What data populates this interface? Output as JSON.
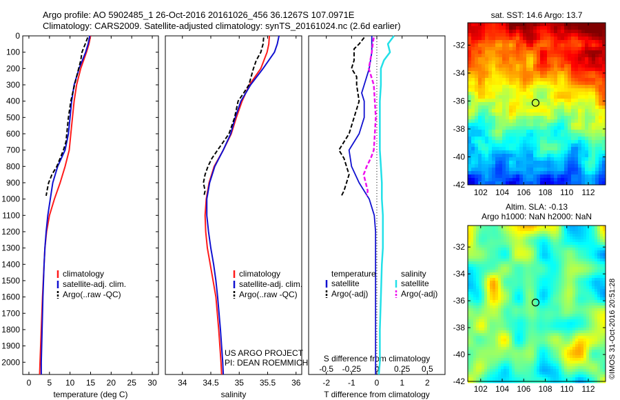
{
  "header": {
    "line1": "Argo profile: AO 5902485_1 26-Oct-2016 20161026_456 36.1267S 107.0971E",
    "line2": "Climatology: CARS2009. Satellite-adjusted climatology: synTS_20161024.nc (2.6d earlier)"
  },
  "colors": {
    "climatology": "#ff1a1a",
    "satellite": "#1010d0",
    "argo": "#000000",
    "sal_satellite": "#22e0e8",
    "sal_argo": "#ee10ee"
  },
  "chart_data": [
    {
      "type": "line",
      "panel": "temperature",
      "xlabel": "temperature (deg C)",
      "ylabel": "",
      "xlim": [
        -1.5,
        31.5
      ],
      "ylim": [
        2075,
        0
      ],
      "xticks": [
        0,
        5,
        10,
        15,
        20,
        25,
        30
      ],
      "yticks": [
        0,
        100,
        200,
        300,
        400,
        500,
        600,
        700,
        800,
        900,
        1000,
        1100,
        1200,
        1300,
        1400,
        1500,
        1600,
        1700,
        1800,
        1900,
        2000
      ],
      "legend": [
        "climatology",
        "satellite-adj. clim.",
        "Argo(..raw -QC)"
      ],
      "series": [
        {
          "name": "climatology",
          "depth": [
            0,
            50,
            100,
            200,
            300,
            400,
            500,
            600,
            700,
            800,
            900,
            1000,
            1100,
            1200,
            1300,
            1400,
            1600,
            1800,
            2000,
            2075
          ],
          "values": [
            15,
            14.6,
            14,
            12.6,
            11.6,
            11,
            10.6,
            10.2,
            9.8,
            8.8,
            7.6,
            6.2,
            5,
            4.3,
            3.9,
            3.7,
            3.3,
            3,
            2.7,
            2.6
          ]
        },
        {
          "name": "satellite-adj. clim.",
          "depth": [
            0,
            50,
            100,
            200,
            300,
            400,
            500,
            600,
            700,
            800,
            900,
            1000,
            1100,
            1200,
            1300,
            1400,
            1600,
            1800,
            2000,
            2075
          ],
          "values": [
            14.8,
            14.4,
            13.8,
            12.2,
            11,
            10.4,
            10,
            9.6,
            8.8,
            7,
            5.8,
            5.2,
            4.6,
            4.2,
            3.9,
            3.7,
            3.4,
            3.2,
            3,
            3
          ]
        },
        {
          "name": "Argo(..raw -QC)",
          "depth": [
            10,
            50,
            100,
            150,
            200,
            300,
            400,
            500,
            600,
            650,
            700,
            750,
            800,
            850,
            900,
            950,
            980
          ],
          "values": [
            14.3,
            13.7,
            12.9,
            12.6,
            12.1,
            11.1,
            10.2,
            9.6,
            9.2,
            9.0,
            8.4,
            7.6,
            6.8,
            5.6,
            4.8,
            4.4,
            4.2
          ]
        }
      ]
    },
    {
      "type": "line",
      "panel": "salinity",
      "xlabel": "salinity",
      "ylabel": "",
      "xlim": [
        33.7,
        36.1
      ],
      "ylim": [
        2075,
        0
      ],
      "xticks": [
        34,
        34.5,
        35,
        35.5,
        36
      ],
      "xtick_labels": [
        "34",
        "34.5",
        "35",
        "35.5",
        "36"
      ],
      "legend": [
        "climatology",
        "satellite-adj. clim.",
        "Argo(..raw -QC)"
      ],
      "annotation": [
        "US ARGO PROJECT",
        "PI: DEAN ROEMMICH"
      ],
      "series": [
        {
          "name": "climatology",
          "depth": [
            0,
            50,
            100,
            200,
            300,
            400,
            500,
            600,
            700,
            800,
            900,
            1000,
            1100,
            1200,
            1300,
            1400,
            1500,
            1600,
            1800,
            2000,
            2075
          ],
          "values": [
            35.53,
            35.52,
            35.49,
            35.38,
            35.18,
            35.05,
            34.95,
            34.86,
            34.72,
            34.56,
            34.47,
            34.42,
            34.4,
            34.41,
            34.44,
            34.49,
            34.54,
            34.59,
            34.64,
            34.68,
            34.69
          ]
        },
        {
          "name": "satellite-adj. clim.",
          "depth": [
            0,
            50,
            100,
            200,
            300,
            400,
            500,
            600,
            700,
            800,
            900,
            1000,
            1100,
            1200,
            1300,
            1400,
            1500,
            1600,
            1800,
            2000,
            2075
          ],
          "values": [
            35.7,
            35.67,
            35.62,
            35.42,
            35.2,
            35.03,
            34.93,
            34.85,
            34.72,
            34.57,
            34.48,
            34.43,
            34.43,
            34.46,
            34.5,
            34.55,
            34.59,
            34.62,
            34.67,
            34.71,
            34.72
          ]
        },
        {
          "name": "Argo(..raw -QC)",
          "depth": [
            10,
            50,
            100,
            150,
            200,
            300,
            350,
            400,
            500,
            600,
            700,
            750,
            800,
            850,
            900,
            950,
            980
          ],
          "values": [
            35.43,
            35.42,
            35.38,
            35.3,
            35.25,
            35.17,
            35.08,
            34.98,
            34.92,
            34.82,
            34.62,
            34.52,
            34.45,
            34.4,
            34.37,
            34.4,
            34.38
          ]
        }
      ]
    },
    {
      "type": "line",
      "panel": "difference",
      "xlabel": "T difference from climatology",
      "xlabel_top": "S difference from climatology",
      "xlim": [
        -2.7,
        2.7
      ],
      "ylim": [
        2075,
        0
      ],
      "xticks": [
        -2,
        -1,
        0,
        1,
        2
      ],
      "xticks_salinity": [
        -0.5,
        -0.25,
        0,
        0.25,
        0.5
      ],
      "xtick_labels_salinity": [
        "-0.5",
        "-0.25",
        "0",
        "0.25",
        "0.5"
      ],
      "legend": {
        "temperature_title": "temperature",
        "salinity_title": "salinity",
        "items": [
          "satellite",
          "Argo(-adj)",
          "satellite",
          "Argo(-adj)"
        ]
      },
      "series": [
        {
          "name": "satellite",
          "quantity": "T",
          "depth": [
            0,
            50,
            100,
            200,
            300,
            350,
            400,
            500,
            600,
            700,
            800,
            900,
            1000,
            1100,
            1200,
            1300,
            1400,
            1500,
            1600,
            1800,
            2000,
            2075
          ],
          "values": [
            -0.2,
            -0.2,
            -0.2,
            -0.3,
            -0.5,
            -0.6,
            -0.5,
            -0.5,
            -0.7,
            -1.1,
            -1.0,
            -0.7,
            -0.3,
            -0.1,
            -0.05,
            -0.05,
            -0.05,
            -0.05,
            -0.05,
            -0.05,
            -0.05,
            -0.05
          ]
        },
        {
          "name": "Argo(-adj)",
          "quantity": "T",
          "depth": [
            10,
            50,
            80,
            150,
            200,
            250,
            300,
            400,
            500,
            600,
            650,
            700,
            750,
            800,
            850,
            900,
            950,
            980
          ],
          "values": [
            -0.5,
            -0.7,
            -0.9,
            -0.9,
            -1.0,
            -0.8,
            -0.8,
            -0.7,
            -0.9,
            -1.1,
            -1.3,
            -1.5,
            -1.3,
            -1.2,
            -1.1,
            -1.2,
            -1.3,
            -1.4
          ]
        },
        {
          "name": "satellite",
          "quantity": "S",
          "depth": [
            0,
            50,
            100,
            150,
            200,
            300,
            400,
            500,
            600,
            700,
            800,
            900,
            1000,
            1100,
            1200,
            1300,
            1400,
            1600,
            1800,
            2000,
            2075
          ],
          "values": [
            0.17,
            0.11,
            0.13,
            0.07,
            0.04,
            0.04,
            0.03,
            0.03,
            0.03,
            0.03,
            0.04,
            0.05,
            0.05,
            0.06,
            0.06,
            0.06,
            0.05,
            0.04,
            0.03,
            0.03,
            0.02
          ]
        },
        {
          "name": "Argo(-adj)",
          "quantity": "S",
          "depth": [
            10,
            50,
            100,
            200,
            300,
            400,
            500,
            600,
            700,
            750,
            800,
            850,
            900,
            950,
            980
          ],
          "values": [
            -0.03,
            -0.04,
            -0.05,
            -0.08,
            -0.03,
            -0.02,
            -0.01,
            -0.02,
            -0.03,
            -0.06,
            -0.1,
            -0.13,
            -0.11,
            -0.09,
            -0.1
          ]
        }
      ]
    },
    {
      "type": "heatmap",
      "panel": "sst_map",
      "title": "sat. SST: 14.6  Argo: 13.7",
      "xlim": [
        100.8,
        113.6
      ],
      "ylim": [
        -42,
        -30.4
      ],
      "xticks": [
        102,
        104,
        106,
        108,
        110,
        112
      ],
      "yticks": [
        -32,
        -34,
        -36,
        -38,
        -40,
        -42
      ],
      "marker": {
        "lon": 107.1,
        "lat": -36.13
      }
    },
    {
      "type": "heatmap",
      "panel": "sla_map",
      "title": "Altim. SLA: -0.13",
      "subtitle": "Argo h1000: NaN  h2000: NaN",
      "xlim": [
        100.8,
        113.6
      ],
      "ylim": [
        -42,
        -30.4
      ],
      "xticks": [
        102,
        104,
        106,
        108,
        110,
        112
      ],
      "yticks": [
        -32,
        -34,
        -36,
        -38,
        -40,
        -42
      ],
      "marker": {
        "lon": 107.1,
        "lat": -36.13
      }
    }
  ],
  "credit": "©IMOS 31-Oct-2016 20:51:28"
}
